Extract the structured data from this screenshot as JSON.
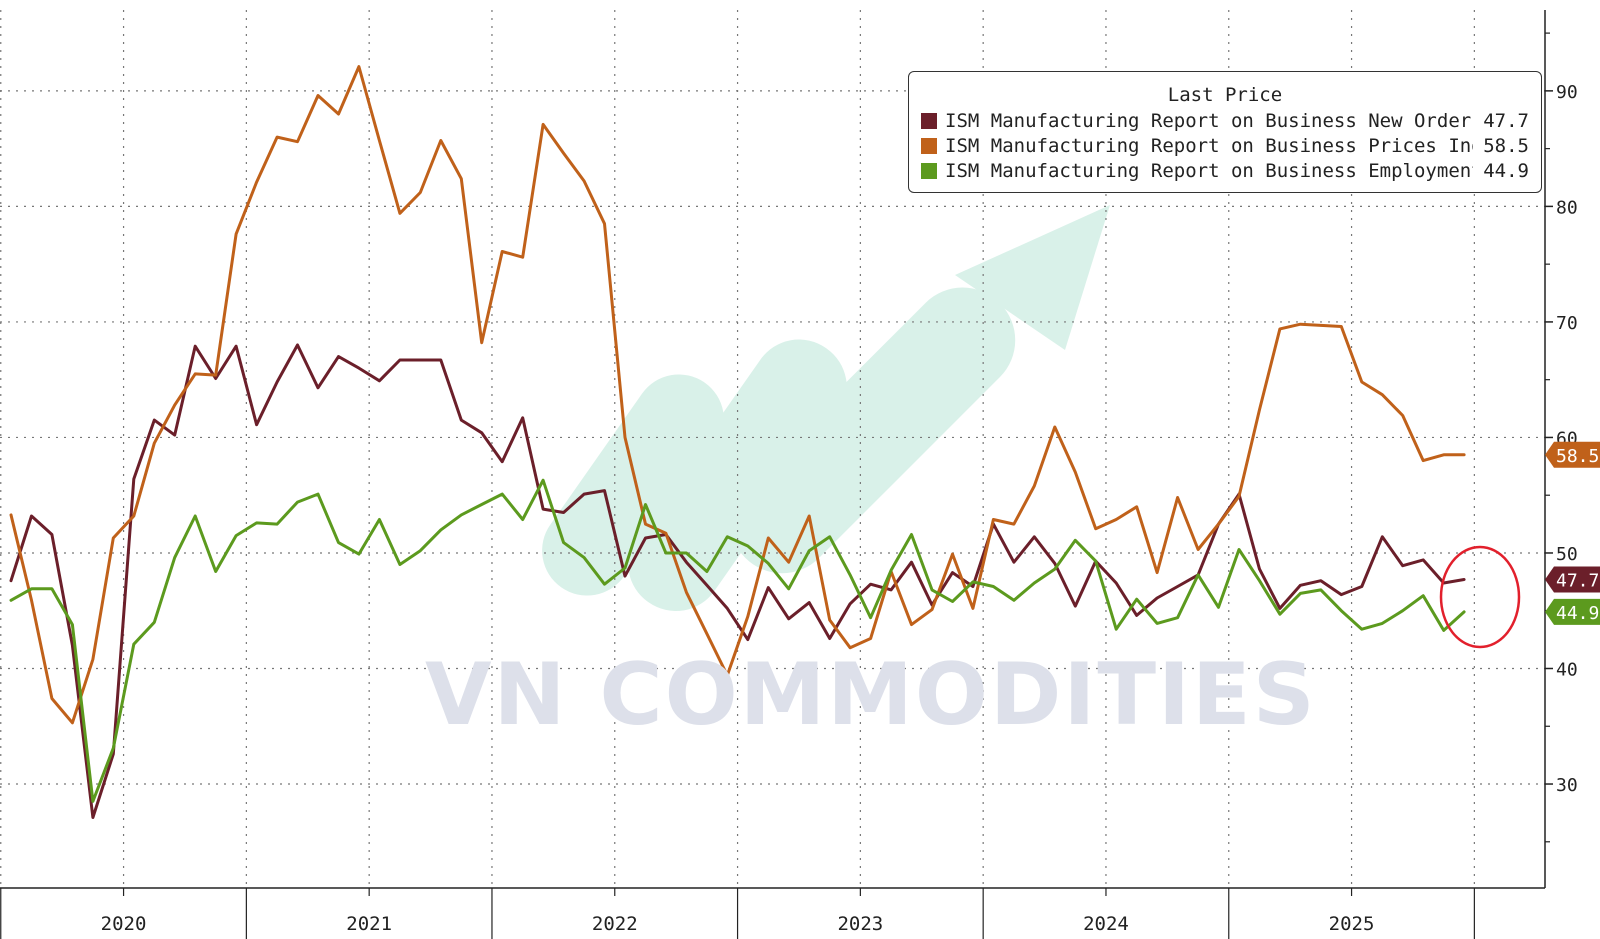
{
  "watermark": "VN COMMODITIES",
  "legend": {
    "title": "Last Price",
    "items": [
      {
        "name": "ISM Manufacturing Report on Business New Orders SA",
        "value": "47.7",
        "color": "#6b1f2a"
      },
      {
        "name": "ISM Manufacturing Report on Business Prices Index NSA",
        "value": "58.5",
        "color": "#c0611a"
      },
      {
        "name": "ISM Manufacturing Report on Business Employment SA",
        "value": "44.9",
        "color": "#5c9a1e"
      }
    ]
  },
  "chart_data": {
    "type": "line",
    "x_start": "2020-01",
    "x_labels": [
      "2020",
      "2021",
      "2022",
      "2023",
      "2024",
      "2025"
    ],
    "ylim": [
      21,
      97
    ],
    "y_ticks": [
      30,
      40,
      50,
      60,
      70,
      80,
      90
    ],
    "grid": true,
    "legend_position": "top-right",
    "series": [
      {
        "name": "ISM Manufacturing Report on Business New Orders SA",
        "color": "#6b1f2a",
        "last": "47.7",
        "values": [
          47.6,
          53.2,
          51.6,
          42.0,
          27.1,
          32.6,
          56.4,
          61.5,
          60.2,
          67.9,
          65.1,
          67.9,
          61.1,
          64.8,
          68.0,
          64.3,
          67.0,
          66.0,
          64.9,
          66.7,
          66.7,
          66.7,
          61.5,
          60.4,
          57.9,
          61.7,
          53.8,
          53.5,
          55.1,
          55.4,
          48.0,
          51.3,
          51.6,
          49.2,
          47.2,
          45.2,
          42.5,
          47.0,
          44.3,
          45.7,
          42.6,
          45.6,
          47.3,
          46.8,
          49.2,
          45.5,
          48.3,
          47.1,
          52.5,
          49.2,
          51.4,
          49.1,
          45.4,
          49.3,
          47.4,
          44.6,
          46.1,
          47.1,
          48.1,
          52.5,
          55.1,
          48.6,
          45.2,
          47.2,
          47.6,
          46.4,
          47.1,
          51.4,
          48.9,
          49.4,
          47.4,
          47.7
        ]
      },
      {
        "name": "ISM Manufacturing Report on Business Prices Index NSA",
        "color": "#c0611a",
        "last": "58.5",
        "values": [
          53.3,
          45.9,
          37.4,
          35.3,
          40.8,
          51.3,
          53.2,
          59.5,
          62.8,
          65.5,
          65.4,
          77.6,
          82.1,
          86.0,
          85.6,
          89.6,
          88.0,
          92.1,
          85.7,
          79.4,
          81.2,
          85.7,
          82.4,
          68.2,
          76.1,
          75.6,
          87.1,
          84.6,
          82.2,
          78.5,
          60.0,
          52.5,
          51.7,
          46.6,
          43.0,
          39.4,
          44.5,
          51.3,
          49.2,
          53.2,
          44.2,
          41.8,
          42.6,
          48.4,
          43.8,
          45.1,
          49.9,
          45.2,
          52.9,
          52.5,
          55.8,
          60.9,
          57.0,
          52.1,
          52.9,
          54.0,
          48.3,
          54.8,
          50.3,
          52.5,
          54.9,
          62.4,
          69.4,
          69.8,
          69.7,
          69.6,
          64.8,
          63.7,
          61.9,
          58.0,
          58.5,
          58.5
        ]
      },
      {
        "name": "ISM Manufacturing Report on Business Employment SA",
        "color": "#5c9a1e",
        "last": "44.9",
        "values": [
          45.9,
          46.9,
          46.9,
          43.8,
          28.5,
          33.1,
          42.1,
          44.0,
          49.6,
          53.2,
          48.4,
          51.5,
          52.6,
          52.5,
          54.4,
          55.1,
          50.9,
          49.9,
          52.9,
          49.0,
          50.2,
          52.0,
          53.3,
          54.2,
          55.1,
          52.9,
          56.3,
          50.9,
          49.6,
          47.3,
          48.7,
          54.2,
          50.0,
          50.0,
          48.4,
          51.4,
          50.6,
          49.1,
          46.9,
          50.2,
          51.4,
          48.1,
          44.4,
          48.5,
          51.6,
          46.8,
          45.8,
          47.5,
          47.1,
          45.9,
          47.4,
          48.6,
          51.1,
          49.3,
          43.4,
          46.0,
          43.9,
          44.4,
          48.1,
          45.3,
          50.3,
          47.6,
          44.7,
          46.5,
          46.8,
          45.0,
          43.4,
          43.9,
          45.0,
          46.3,
          43.3,
          44.9
        ]
      }
    ]
  }
}
